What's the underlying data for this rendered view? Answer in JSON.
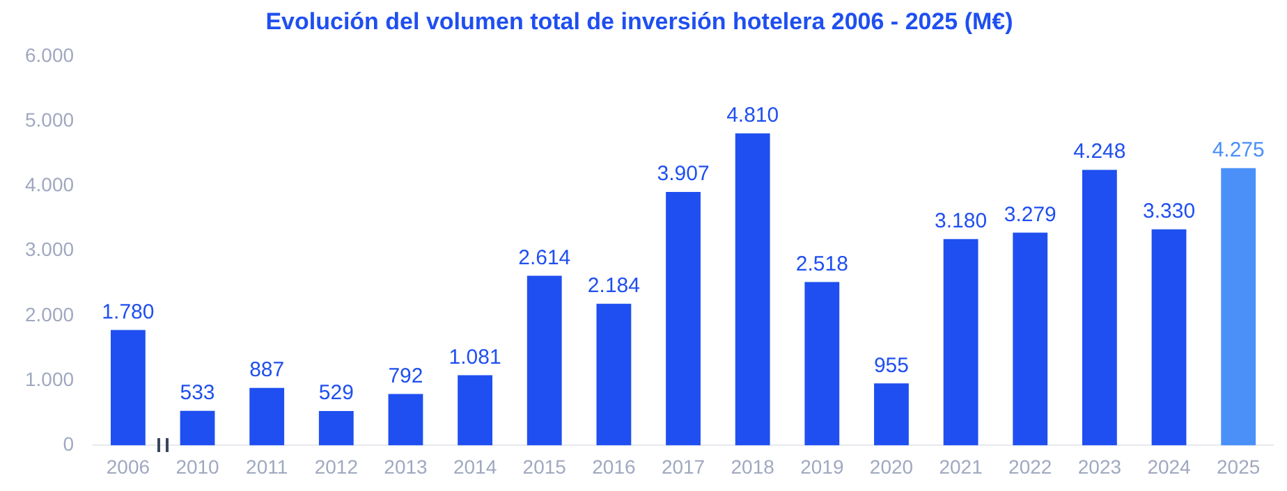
{
  "chart_data": {
    "type": "bar",
    "title": "Evolución del volumen total de inversión hotelera 2006 - 2025 (M€)",
    "categories": [
      "2006",
      "2010",
      "2011",
      "2012",
      "2013",
      "2014",
      "2015",
      "2016",
      "2017",
      "2018",
      "2019",
      "2020",
      "2021",
      "2022",
      "2023",
      "2024",
      "2025"
    ],
    "values": [
      1780,
      533,
      887,
      529,
      792,
      1081,
      2614,
      2184,
      3907,
      4810,
      2518,
      955,
      3180,
      3279,
      4248,
      3330,
      4275
    ],
    "colors": [
      "#1f4ff0",
      "#1f4ff0",
      "#1f4ff0",
      "#1f4ff0",
      "#1f4ff0",
      "#1f4ff0",
      "#1f4ff0",
      "#1f4ff0",
      "#1f4ff0",
      "#1f4ff0",
      "#1f4ff0",
      "#1f4ff0",
      "#1f4ff0",
      "#1f4ff0",
      "#1f4ff0",
      "#1f4ff0",
      "#4a90f8"
    ],
    "value_labels": [
      "1.780",
      "533",
      "887",
      "529",
      "792",
      "1.081",
      "2.614",
      "2.184",
      "3.907",
      "4.810",
      "2.518",
      "955",
      "3.180",
      "3.279",
      "4.248",
      "3.330",
      "4.275"
    ],
    "ylim": [
      0,
      6000
    ],
    "yticks": [
      {
        "value": 0,
        "label": "0"
      },
      {
        "value": 1000,
        "label": "1.000"
      },
      {
        "value": 2000,
        "label": "2.000"
      },
      {
        "value": 3000,
        "label": "3.000"
      },
      {
        "value": 4000,
        "label": "4.000"
      },
      {
        "value": 5000,
        "label": "5.000"
      },
      {
        "value": 6000,
        "label": "6.000"
      }
    ],
    "grid": false,
    "legend": false
  }
}
